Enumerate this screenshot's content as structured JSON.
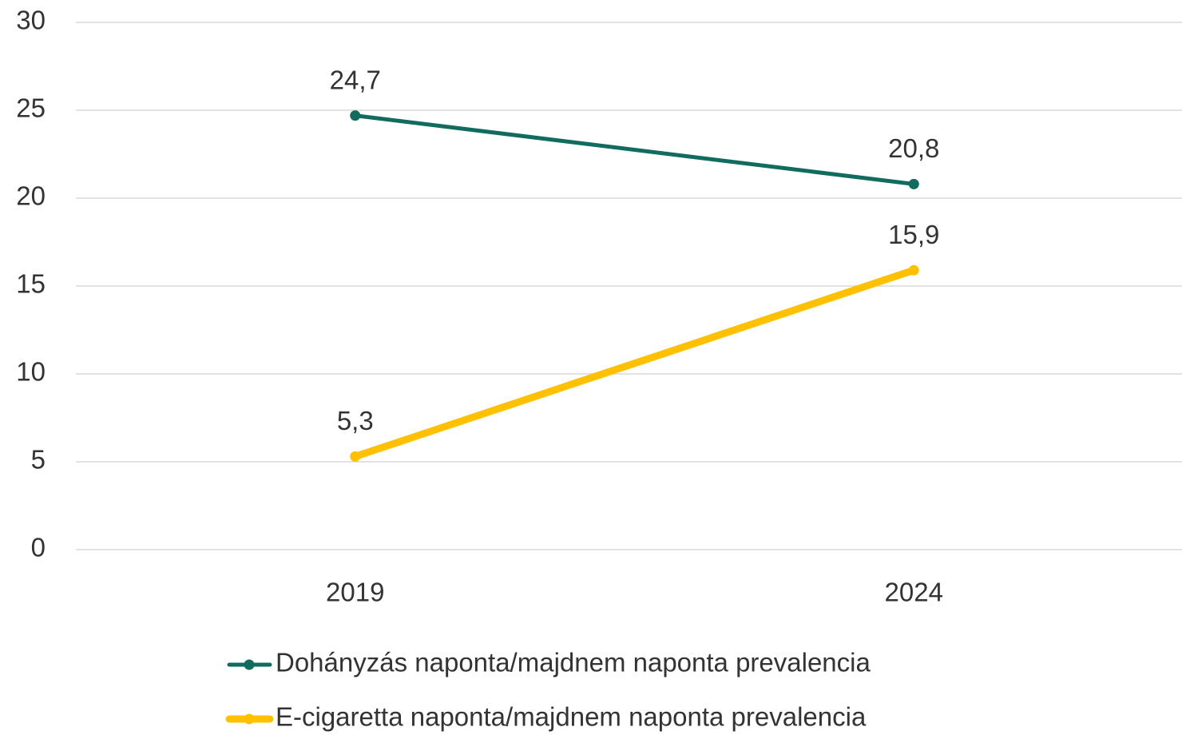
{
  "chart_data": {
    "type": "line",
    "categories": [
      "2019",
      "2024"
    ],
    "series": [
      {
        "name": "Dohányzás naponta/majdnem naponta prevalencia",
        "color": "#116b5f",
        "values": [
          24.7,
          20.8
        ],
        "value_labels": [
          "24,7",
          "20,8"
        ]
      },
      {
        "name": "E-cigaretta naponta/majdnem naponta prevalencia",
        "color": "#ffc000",
        "values": [
          5.3,
          15.9
        ],
        "value_labels": [
          "5,3",
          "15,9"
        ]
      }
    ],
    "ylim": [
      0,
      30
    ],
    "yticks": [
      0,
      5,
      10,
      15,
      20,
      25,
      30
    ],
    "grid": true,
    "legend": "bottom"
  }
}
